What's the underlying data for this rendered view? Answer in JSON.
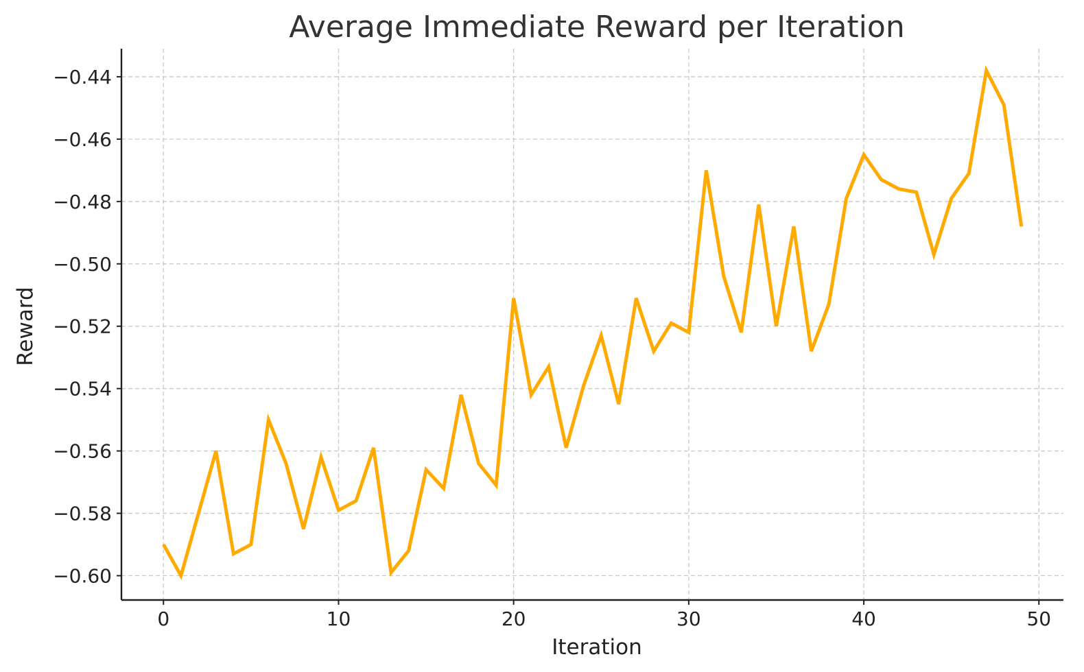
{
  "chart_data": {
    "type": "line",
    "title": "Average Immediate Reward per Iteration",
    "xlabel": "Iteration",
    "ylabel": "Reward",
    "xlim": [
      -2.4,
      51.4
    ],
    "ylim": [
      -0.6078,
      -0.431
    ],
    "grid": true,
    "x_ticks": [
      0,
      10,
      20,
      30,
      40,
      50
    ],
    "y_ticks": [
      -0.44,
      -0.46,
      -0.48,
      -0.5,
      -0.52,
      -0.54,
      -0.56,
      -0.58,
      -0.6
    ],
    "x_tick_labels": [
      "0",
      "10",
      "20",
      "30",
      "40",
      "50"
    ],
    "y_tick_labels": [
      "−0.44",
      "−0.46",
      "−0.48",
      "−0.50",
      "−0.52",
      "−0.54",
      "−0.56",
      "−0.58",
      "−0.60"
    ],
    "colors": {
      "line": "#FFAA00"
    },
    "x": [
      0,
      1,
      2,
      3,
      4,
      5,
      6,
      7,
      8,
      9,
      10,
      11,
      12,
      13,
      14,
      15,
      16,
      17,
      18,
      19,
      20,
      21,
      22,
      23,
      24,
      25,
      26,
      27,
      28,
      29,
      30,
      31,
      32,
      33,
      34,
      35,
      36,
      37,
      38,
      39,
      40,
      41,
      42,
      43,
      44,
      45,
      46,
      47,
      48,
      49
    ],
    "series": [
      {
        "values": [
          -0.59,
          -0.6,
          -0.58,
          -0.56,
          -0.593,
          -0.59,
          -0.55,
          -0.564,
          -0.585,
          -0.562,
          -0.579,
          -0.576,
          -0.559,
          -0.599,
          -0.592,
          -0.566,
          -0.572,
          -0.542,
          -0.564,
          -0.571,
          -0.511,
          -0.542,
          -0.533,
          -0.559,
          -0.539,
          -0.523,
          -0.545,
          -0.511,
          -0.528,
          -0.519,
          -0.522,
          -0.47,
          -0.504,
          -0.522,
          -0.481,
          -0.52,
          -0.488,
          -0.528,
          -0.513,
          -0.479,
          -0.465,
          -0.473,
          -0.476,
          -0.477,
          -0.497,
          -0.479,
          -0.471,
          -0.438,
          -0.449,
          -0.488
        ]
      }
    ]
  }
}
